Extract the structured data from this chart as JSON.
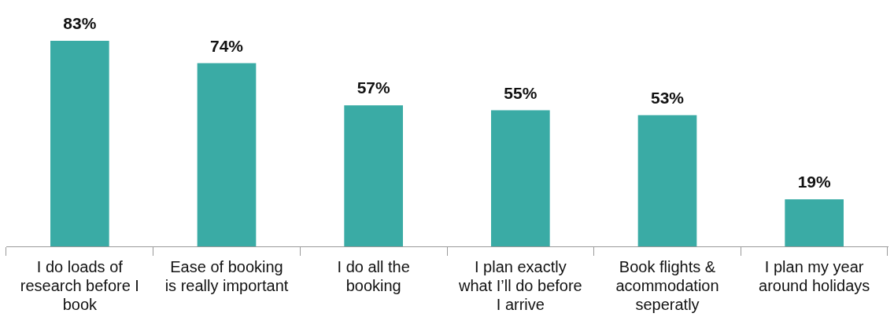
{
  "chart_data": {
    "type": "bar",
    "categories": [
      "I do loads of research before I book",
      "Ease of booking is really important",
      "I do all the booking",
      "I plan exactly what I’ll do before I arrive",
      "Book flights & acommodation seperatly",
      "I plan my year around holidays"
    ],
    "values": [
      83,
      74,
      57,
      55,
      53,
      19
    ],
    "color": "#3aaba5",
    "value_labels": [
      "83%",
      "74%",
      "57%",
      "55%",
      "53%",
      "19%"
    ],
    "legend": false,
    "grid": false
  }
}
